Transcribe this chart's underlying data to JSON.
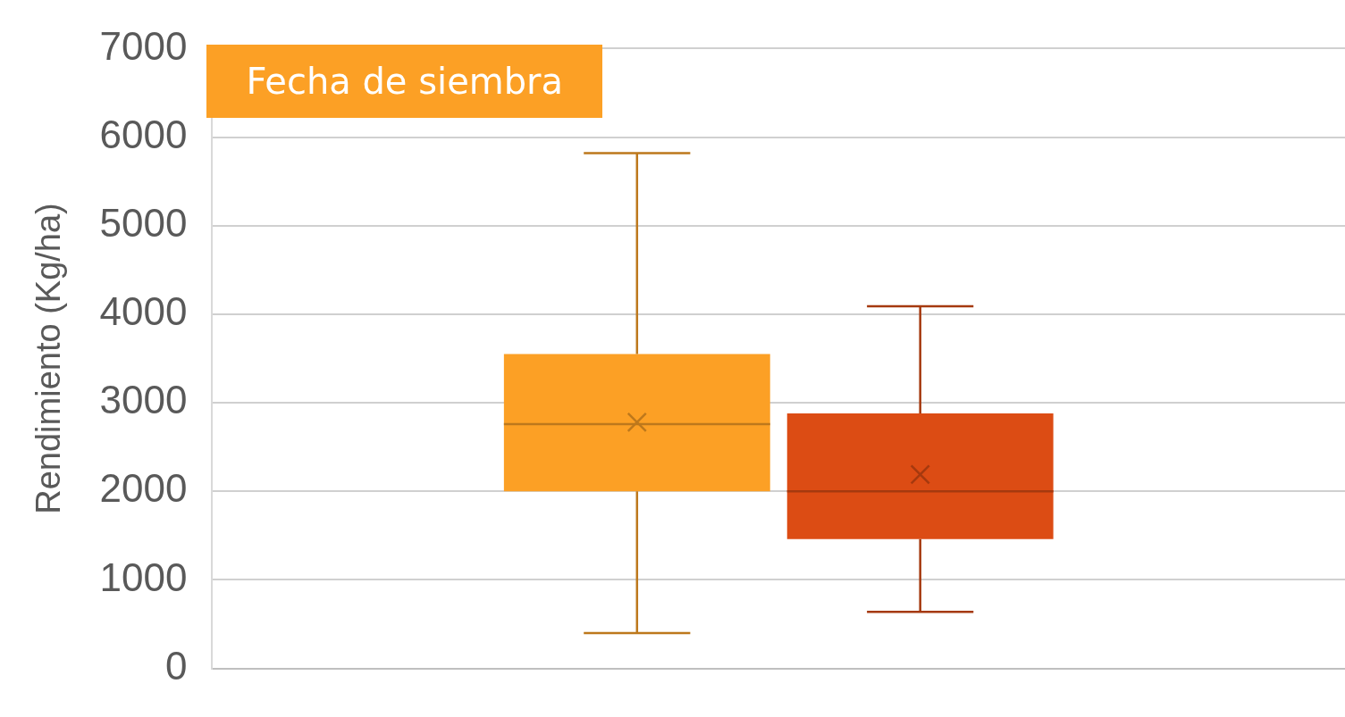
{
  "chart_data": {
    "type": "box",
    "ylabel": "Rendimiento (Kg/ha)",
    "categories": [
      null
    ],
    "series": [
      {
        "color": "#fca025",
        "boxes": [
          {
            "low": 400,
            "q1": 2000,
            "median": 2760,
            "q3": 3550,
            "high": 5820,
            "mean": 2780
          }
        ]
      },
      {
        "color": "#dc4c14",
        "boxes": [
          {
            "low": 640,
            "q1": 1460,
            "median": 2000,
            "q3": 2880,
            "high": 4090,
            "mean": 2190
          }
        ]
      }
    ],
    "ylim": [
      0,
      7000
    ],
    "yticks": [
      0,
      1000,
      2000,
      3000,
      4000,
      5000,
      6000,
      7000
    ],
    "grid": "y",
    "legend": false,
    "tick_labels": "y",
    "annotations": [
      "Fecha de siembra"
    ]
  }
}
